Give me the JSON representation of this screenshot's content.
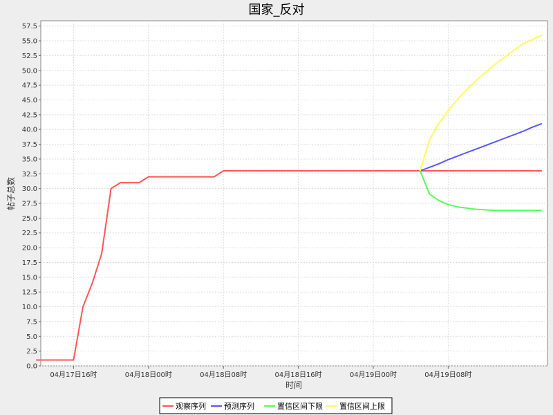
{
  "chart_data": {
    "type": "line",
    "title": "国家_反对",
    "xlabel": "时间",
    "ylabel": "帖子总数",
    "ylim": [
      0,
      57.5
    ],
    "y_ticks": [
      0.0,
      2.5,
      5.0,
      7.5,
      10.0,
      12.5,
      15.0,
      17.5,
      20.0,
      22.5,
      25.0,
      27.5,
      30.0,
      32.5,
      35.0,
      37.5,
      40.0,
      42.5,
      45.0,
      47.5,
      50.0,
      52.5,
      55.0,
      57.5
    ],
    "y_tick_labels": [
      "0.0",
      "2.5",
      "5.0",
      "7.5",
      "10.0",
      "12.5",
      "15.0",
      "17.5",
      "20.0",
      "22.5",
      "25.0",
      "27.5",
      "30.0",
      "32.5",
      "35.0",
      "37.5",
      "40.0",
      "42.5",
      "45.0",
      "47.5",
      "50.0",
      "52.5",
      "55.0",
      "57.5"
    ],
    "x_unit": "hour",
    "xlim": [
      "04月17日13时",
      "04月19日18时"
    ],
    "x_ticks": [
      "04月17日16时",
      "04月18日00时",
      "04月18日08时",
      "04月18日16时",
      "04月19日00时",
      "04月19日08时"
    ],
    "x_tick_labels": [
      "04月17日16时",
      "04月18日00时",
      "04月18日08时",
      "04月18日16时",
      "04月19日00时",
      "04月19日08时"
    ],
    "grid": true,
    "legend_position": "bottom",
    "series": [
      {
        "name": "观察序列",
        "color": "#ff5555",
        "x": [
          "04月17日12时",
          "04月17日13时",
          "04月17日14时",
          "04月17日15时",
          "04月17日16时",
          "04月17日17时",
          "04月17日18时",
          "04月17日19时",
          "04月17日20时",
          "04月17日21时",
          "04月17日22时",
          "04月17日23时",
          "04月18日00时",
          "04月18日01时",
          "04月18日02时",
          "04月18日03时",
          "04月18日04时",
          "04月18日05时",
          "04月18日06时",
          "04月18日07时",
          "04月18日08时",
          "04月18日09时",
          "04月18日10时",
          "04月18日11时",
          "04月18日12时",
          "04月18日13时",
          "04月18日14时",
          "04月18日15时",
          "04月18日16时",
          "04月18日17时",
          "04月18日18时",
          "04月18日19时",
          "04月18日20时",
          "04月18日21时",
          "04月18日22时",
          "04月18日23时",
          "04月19日00时",
          "04月19日01时",
          "04月19日02时",
          "04月19日03时",
          "04月19日04时",
          "04月19日05时",
          "04月19日06时",
          "04月19日07时",
          "04月19日08时",
          "04月19日09时",
          "04月19日10时",
          "04月19日11时",
          "04月19日12时",
          "04月19日13时",
          "04月19日14时",
          "04月19日15时",
          "04月19日16时",
          "04月19日17时",
          "04月19日18时"
        ],
        "values": [
          1,
          1,
          1,
          1,
          1,
          10,
          14,
          19,
          30,
          31,
          31,
          31,
          32,
          32,
          32,
          32,
          32,
          32,
          32,
          32,
          33,
          33,
          33,
          33,
          33,
          33,
          33,
          33,
          33,
          33,
          33,
          33,
          33,
          33,
          33,
          33,
          33,
          33,
          33,
          33,
          33,
          33,
          33,
          33,
          33,
          33,
          33,
          33,
          33,
          33,
          33,
          33,
          33,
          33,
          33
        ]
      },
      {
        "name": "预测序列",
        "color": "#5555ff",
        "x": [
          "04月19日05时",
          "04月19日06时",
          "04月19日07时",
          "04月19日08时",
          "04月19日09时",
          "04月19日10时",
          "04月19日11时",
          "04月19日12时",
          "04月19日13时",
          "04月19日14时",
          "04月19日15时",
          "04月19日16时",
          "04月19日17时",
          "04月19日18时"
        ],
        "values": [
          33.0,
          33.6,
          34.2,
          34.9,
          35.5,
          36.1,
          36.7,
          37.3,
          37.9,
          38.5,
          39.1,
          39.7,
          40.4,
          41.0
        ]
      },
      {
        "name": "置信区间下限",
        "color": "#55ff55",
        "x": [
          "04月19日05时",
          "04月19日06时",
          "04月19日07时",
          "04月19日08时",
          "04月19日09时",
          "04月19日10时",
          "04月19日11时",
          "04月19日12时",
          "04月19日13时",
          "04月19日14时",
          "04月19日15时",
          "04月19日16时",
          "04月19日17时",
          "04月19日18时"
        ],
        "values": [
          33.0,
          29.1,
          28.0,
          27.3,
          26.9,
          26.7,
          26.5,
          26.4,
          26.3,
          26.3,
          26.3,
          26.3,
          26.3,
          26.3
        ]
      },
      {
        "name": "置信区间上限",
        "color": "#ffff55",
        "x": [
          "04月19日05时",
          "04月19日06时",
          "04月19日07时",
          "04月19日08时",
          "04月19日09时",
          "04月19日10时",
          "04月19日11时",
          "04月19日12时",
          "04月19日13时",
          "04月19日14时",
          "04月19日15时",
          "04月19日16时",
          "04月19日17时",
          "04月19日18时"
        ],
        "values": [
          33.0,
          38.2,
          41.0,
          43.2,
          45.1,
          46.8,
          48.3,
          49.7,
          51.0,
          52.2,
          53.4,
          54.5,
          55.2,
          56.0
        ]
      }
    ]
  }
}
